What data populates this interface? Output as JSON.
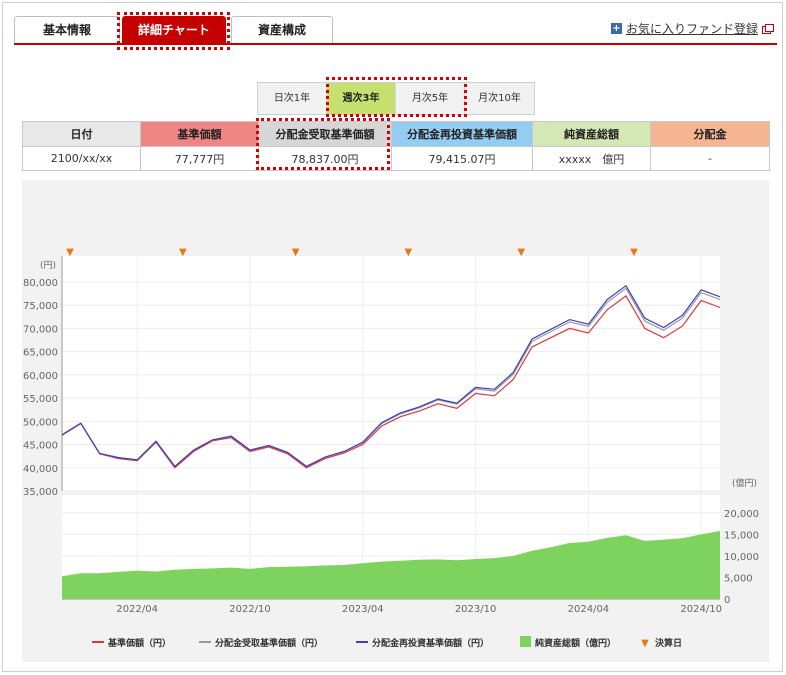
{
  "tabs": [
    "基本情報",
    "詳細チャート",
    "資産構成"
  ],
  "active_tab": 1,
  "favorite": {
    "label": "お気に入りファンド登録",
    "plus_icon": "+"
  },
  "periods": [
    "日次1年",
    "週次3年",
    "月次5年",
    "月次10年"
  ],
  "active_period": 1,
  "table": {
    "headers": [
      "日付",
      "基準価額",
      "分配金受取基準価額",
      "分配金再投資基準価額",
      "純資産総額",
      "分配金"
    ],
    "header_colors": [
      "#e8e8e8",
      "#f08585",
      "#d6d6d6",
      "#93cdf2",
      "#d3e8b4",
      "#f5b492"
    ],
    "values": [
      "2100/xx/xx",
      "77,777円",
      "78,837.00円",
      "79,415.07円",
      "xxxxx　億円",
      "-"
    ]
  },
  "chart_data": {
    "type": "line",
    "x": [
      "2021-12",
      "2022-01",
      "2022-02",
      "2022-03",
      "2022-04",
      "2022-05",
      "2022-06",
      "2022-07",
      "2022-08",
      "2022-09",
      "2022-10",
      "2022-11",
      "2022-12",
      "2023-01",
      "2023-02",
      "2023-03",
      "2023-04",
      "2023-05",
      "2023-06",
      "2023-07",
      "2023-08",
      "2023-09",
      "2023-10",
      "2023-11",
      "2023-12",
      "2024-01",
      "2024-02",
      "2024-03",
      "2024-04",
      "2024-05",
      "2024-06",
      "2024-07",
      "2024-08",
      "2024-09",
      "2024-10",
      "2024-11"
    ],
    "x_tick_labels": [
      "2022/04",
      "2022/10",
      "2023/04",
      "2023/10",
      "2024/04",
      "2024/10"
    ],
    "x_tick_positions": [
      "2022-04",
      "2022-10",
      "2023-04",
      "2023-10",
      "2024-04",
      "2024-10"
    ],
    "series": [
      {
        "name": "基準価額（円）",
        "color": "#d9363e",
        "values": [
          47000,
          49500,
          43000,
          42000,
          41500,
          45500,
          40000,
          43500,
          45800,
          46500,
          43500,
          44500,
          43000,
          40000,
          42000,
          43200,
          45000,
          49000,
          51000,
          52200,
          53800,
          52800,
          56000,
          55500,
          59000,
          66000,
          68000,
          70000,
          69000,
          74000,
          77000,
          70000,
          68000,
          70500,
          76000,
          74500
        ]
      },
      {
        "name": "分配金受取基準価額（円）",
        "color": "#9a9a9a",
        "values": [
          47100,
          49600,
          43100,
          42200,
          41700,
          45700,
          40300,
          43800,
          46000,
          46800,
          43800,
          44800,
          43300,
          40300,
          42300,
          43500,
          45400,
          49500,
          51600,
          52900,
          54600,
          53700,
          57000,
          56500,
          60100,
          67200,
          69300,
          71400,
          70400,
          75600,
          78600,
          71600,
          69600,
          72200,
          77700,
          76200
        ]
      },
      {
        "name": "分配金再投資基準価額（円）",
        "color": "#3e3ec0",
        "values": [
          47100,
          49600,
          43100,
          42200,
          41700,
          45700,
          40300,
          43800,
          46000,
          46800,
          43800,
          44800,
          43300,
          40300,
          42300,
          43500,
          45500,
          49700,
          51800,
          53100,
          54800,
          53900,
          57300,
          56900,
          60500,
          67700,
          69800,
          71900,
          70900,
          76200,
          79200,
          72200,
          70200,
          72800,
          78300,
          76800
        ]
      },
      {
        "name": "純資産総額（億円）",
        "color": "#7ed35f",
        "type": "area",
        "values": [
          5300,
          6000,
          6000,
          6300,
          6600,
          6400,
          6800,
          7000,
          7100,
          7300,
          7000,
          7400,
          7500,
          7600,
          7800,
          7900,
          8300,
          8700,
          8900,
          9100,
          9200,
          9000,
          9300,
          9500,
          10000,
          11200,
          12000,
          13000,
          13300,
          14200,
          14800,
          13500,
          13800,
          14100,
          15000,
          15800
        ]
      }
    ],
    "y_axis": {
      "unit": "(円)",
      "ticks": [
        "80,000",
        "75,000",
        "70,000",
        "65,000",
        "60,000",
        "55,000",
        "50,000",
        "45,000",
        "40,000",
        "35,000"
      ],
      "ylim": [
        35000,
        83000
      ]
    },
    "y2_axis": {
      "unit": "(億円)",
      "ticks": [
        "20,000",
        "15,000",
        "10,000",
        "5,000",
        "0"
      ],
      "ylim": [
        0,
        23000
      ]
    },
    "settlement_marker": {
      "label": "決算日",
      "symbol": "▼",
      "color": "#e07b1a",
      "dates": [
        "2021-12",
        "2022-06",
        "2022-12",
        "2023-06",
        "2023-12",
        "2024-06"
      ]
    },
    "legend": {
      "placement": "bottom",
      "items": [
        "基準価額（円）",
        "分配金受取基準価額（円）",
        "分配金再投資基準価額（円）",
        "純資産総額（億円）",
        "決算日"
      ]
    },
    "grid": true
  }
}
